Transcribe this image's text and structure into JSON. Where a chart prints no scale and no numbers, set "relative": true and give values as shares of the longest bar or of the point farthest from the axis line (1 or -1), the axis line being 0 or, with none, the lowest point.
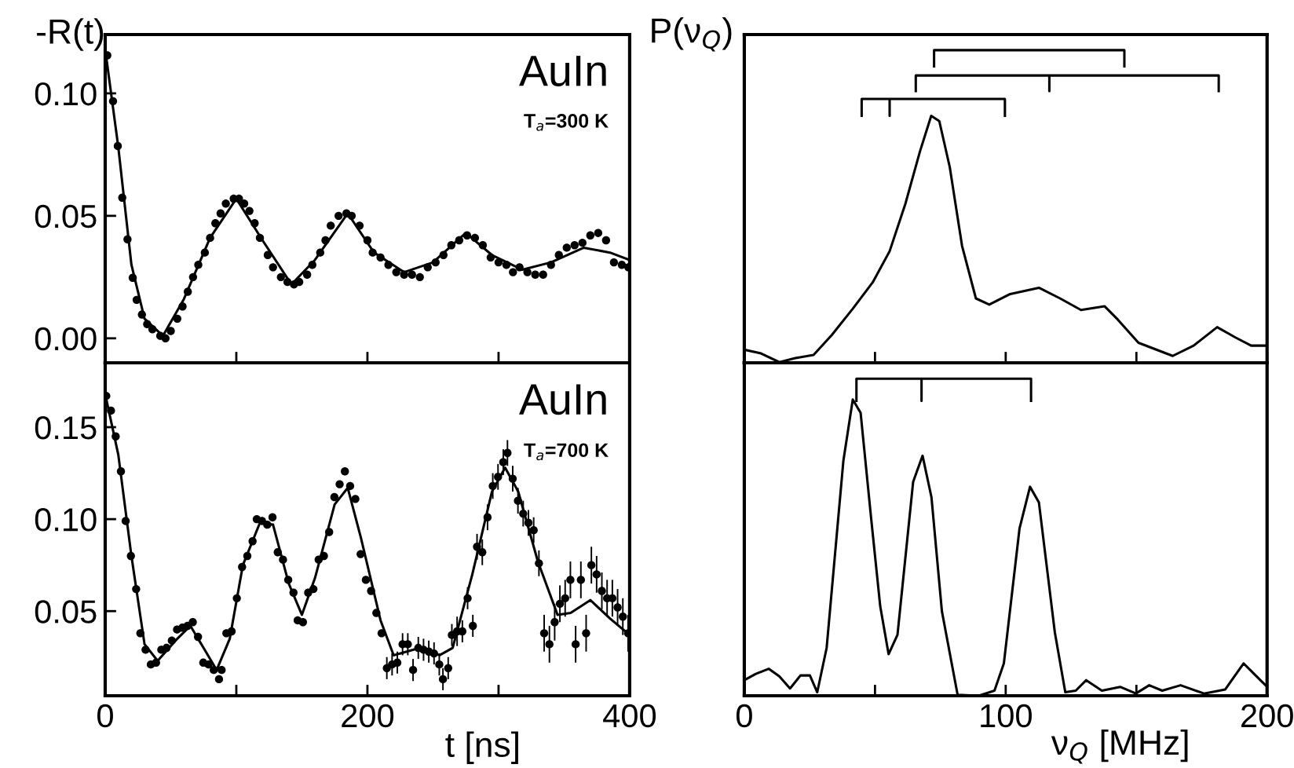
{
  "chart_data": [
    {
      "type": "scatter",
      "ylabel": "-R(t)",
      "annotations": [
        "AuIn",
        "T$_{a}$=300 K"
      ],
      "xlim": [
        0,
        400
      ],
      "xticks": [
        0,
        {
          "value": 100,
          "label": null
        },
        200,
        {
          "value": 300,
          "label": null
        },
        400
      ],
      "ylim": [
        -0.01,
        0.124
      ],
      "yticks": [
        {
          "value": 0,
          "label": "0.00"
        },
        {
          "value": 0.05,
          "label": "0.05"
        },
        {
          "value": 0.1,
          "label": "0.10"
        }
      ],
      "tick_labels": "y",
      "series": [
        {
          "marker": "circle",
          "color": "#000000",
          "x": [
            1.6,
            6,
            9.6,
            13,
            17,
            21,
            24,
            28,
            32,
            36,
            42,
            46,
            50,
            55,
            59,
            63,
            67,
            71,
            76,
            80,
            84,
            88,
            92,
            98,
            102,
            106,
            110,
            114,
            118,
            124,
            128,
            134,
            139,
            144,
            148,
            154,
            158,
            164,
            168,
            172,
            178,
            184,
            188,
            194,
            200,
            204,
            210,
            216,
            222,
            228,
            234,
            240,
            246,
            252,
            258,
            264,
            270,
            276,
            282,
            288,
            294,
            300,
            306,
            311,
            316,
            322,
            328,
            334,
            340,
            346,
            352,
            358,
            364,
            370,
            376,
            382,
            388,
            394,
            399
          ],
          "values": [
            0.1155,
            0.0968,
            0.0785,
            0.0574,
            0.0404,
            0.0247,
            0.0157,
            0.0097,
            0.0058,
            0.0037,
            0.001,
            0.0,
            0.003,
            0.008,
            0.013,
            0.019,
            0.025,
            0.03,
            0.035,
            0.041,
            0.047,
            0.051,
            0.055,
            0.057,
            0.057,
            0.055,
            0.052,
            0.047,
            0.041,
            0.034,
            0.029,
            0.025,
            0.023,
            0.022,
            0.023,
            0.026,
            0.03,
            0.035,
            0.04,
            0.046,
            0.05,
            0.051,
            0.05,
            0.046,
            0.04,
            0.035,
            0.033,
            0.03,
            0.027,
            0.026,
            0.026,
            0.025,
            0.029,
            0.031,
            0.034,
            0.038,
            0.04,
            0.042,
            0.041,
            0.038,
            0.033,
            0.031,
            0.03,
            0.027,
            0.029,
            0.027,
            0.026,
            0.026,
            0.03,
            0.034,
            0.037,
            0.038,
            0.039,
            0.042,
            0.043,
            0.04,
            0.031,
            0.03,
            0.029
          ]
        },
        {
          "type": "line",
          "color": "#000000",
          "x": [
            0,
            10,
            20,
            30,
            44,
            60,
            80,
            100,
            120,
            142,
            160,
            185,
            205,
            228,
            250,
            275,
            295,
            318,
            340,
            365,
            385,
            400
          ],
          "values": [
            0.118,
            0.078,
            0.03,
            0.008,
            0.001,
            0.016,
            0.041,
            0.057,
            0.04,
            0.022,
            0.032,
            0.051,
            0.035,
            0.027,
            0.031,
            0.043,
            0.034,
            0.028,
            0.031,
            0.037,
            0.035,
            0.032
          ]
        }
      ]
    },
    {
      "type": "line",
      "ylabel": "P(ν$_{Q}$)",
      "relative": true,
      "xlim": [
        0,
        200
      ],
      "xticks": [
        0,
        {
          "value": 50,
          "label": null
        },
        100,
        {
          "value": 150,
          "label": null
        },
        200
      ],
      "tick_labels": false,
      "series": [
        {
          "color": "#000000",
          "x": [
            0,
            6.4,
            13.4,
            19.5,
            26.5,
            33.5,
            41.5,
            49.1,
            55.6,
            61.6,
            67.2,
            71.5,
            74.6,
            78.6,
            83.3,
            88.6,
            93.7,
            101.7,
            112.7,
            120.8,
            128.8,
            137.8,
            142.8,
            150.8,
            163.9,
            171.9,
            180.9,
            187.9,
            193.9,
            200
          ],
          "values": [
            0.042,
            0.03,
            0.002,
            0.015,
            0.025,
            0.089,
            0.173,
            0.257,
            0.357,
            0.508,
            0.676,
            0.79,
            0.773,
            0.626,
            0.374,
            0.206,
            0.186,
            0.22,
            0.24,
            0.206,
            0.169,
            0.181,
            0.139,
            0.064,
            0.022,
            0.055,
            0.114,
            0.081,
            0.055,
            0.055
          ]
        },
        {
          "color": "#000000",
          "x": [
            72.6,
            72.6,
            145.4,
            145.4
          ],
          "values": [
            0.948,
            1.0,
            1.0,
            0.948
          ]
        },
        {
          "color": "#000000",
          "x": [
            65.6,
            65.6,
            116.7,
            116.7,
            116.7,
            181.5,
            181.5
          ],
          "values": [
            0.869,
            0.919,
            0.919,
            0.869,
            0.919,
            0.919,
            0.869
          ]
        },
        {
          "color": "#000000",
          "x": [
            44.9,
            44.9,
            55.6,
            55.6,
            55.6,
            99.7,
            99.7
          ],
          "values": [
            0.79,
            0.844,
            0.844,
            0.79,
            0.844,
            0.844,
            0.79
          ]
        }
      ]
    },
    {
      "type": "scatter",
      "xlabel": "t [ns]",
      "annotations": [
        "AuIn",
        "T$_{a}$=700 K"
      ],
      "xlim": [
        0,
        400
      ],
      "xticks": [
        0,
        {
          "value": 100,
          "label": null
        },
        200,
        {
          "value": 300,
          "label": null
        },
        400
      ],
      "ylim": [
        0.004,
        0.185
      ],
      "yticks": [
        {
          "value": 0.05,
          "label": "0.05"
        },
        {
          "value": 0.1,
          "label": "0.10"
        },
        {
          "value": 0.15,
          "label": "0.15"
        }
      ],
      "series": [
        {
          "marker": "circle",
          "color": "#000000",
          "x": [
            0.8,
            4.4,
            8,
            12,
            15.6,
            19.6,
            23.6,
            26.8,
            30.8,
            34.8,
            38.8,
            42.8,
            46.8,
            50.8,
            54.8,
            58.8,
            62.8,
            66.8,
            70.8,
            74.8,
            78.8,
            82.8,
            86.8,
            88.8,
            92.4,
            96.4,
            100.4,
            104.4,
            108.4,
            112.4,
            115.6,
            119.6,
            123.6,
            127.6,
            131.6,
            135.6,
            139.6,
            143.6,
            146.8,
            150.8,
            154.8,
            158.8,
            162.8,
            166.8,
            170.8,
            174.8,
            178.8,
            182.8,
            186.8,
            190.8,
            194.8,
            198.8,
            202.8,
            206.8,
            210.8,
            214.8,
            218.8,
            222.8,
            226.8,
            230.8,
            234.8,
            238.8,
            242.8,
            246.8,
            250.8,
            254.8,
            257.6,
            261.6,
            264.4,
            268.4,
            272.4,
            276.4,
            280.4,
            283.6,
            287.6,
            291.6,
            295.6,
            299.6,
            303.6,
            306.8,
            310.8,
            314.8,
            318.8,
            322.8,
            326.8,
            330.8,
            334.8,
            338.8,
            342.8,
            346.8,
            350.8,
            354.8,
            358.8,
            362.8,
            366.8,
            370.8,
            374.8,
            378.8,
            382.8,
            386.8,
            390.8,
            394.8,
            398.8
          ],
          "values": [
            0.167,
            0.159,
            0.145,
            0.126,
            0.099,
            0.08,
            0.062,
            0.038,
            0.029,
            0.021,
            0.022,
            0.029,
            0.03,
            0.034,
            0.04,
            0.041,
            0.042,
            0.044,
            0.036,
            0.022,
            0.021,
            0.018,
            0.013,
            0.018,
            0.038,
            0.039,
            0.057,
            0.074,
            0.08,
            0.088,
            0.1,
            0.099,
            0.097,
            0.101,
            0.082,
            0.078,
            0.067,
            0.06,
            0.045,
            0.044,
            0.06,
            0.062,
            0.078,
            0.08,
            0.093,
            0.112,
            0.119,
            0.126,
            0.118,
            0.111,
            0.081,
            0.067,
            0.061,
            0.049,
            0.038,
            0.019,
            0.021,
            0.022,
            0.032,
            0.032,
            0.018,
            0.03,
            0.029,
            0.028,
            0.027,
            0.021,
            0.013,
            0.019,
            0.037,
            0.039,
            0.039,
            0.057,
            0.042,
            0.085,
            0.082,
            0.101,
            0.118,
            0.123,
            0.131,
            0.136,
            0.122,
            0.11,
            0.103,
            0.098,
            0.094,
            0.076,
            0.038,
            0.032,
            0.044,
            0.054,
            0.057,
            0.067,
            0.032,
            0.067,
            0.038,
            0.075,
            0.07,
            0.061,
            0.057,
            0.057,
            0.052,
            0.047,
            0.038
          ],
          "errors": [
            null,
            null,
            null,
            null,
            null,
            null,
            null,
            null,
            null,
            null,
            null,
            null,
            null,
            null,
            null,
            null,
            null,
            null,
            null,
            null,
            null,
            null,
            null,
            null,
            null,
            null,
            null,
            null,
            null,
            null,
            null,
            null,
            null,
            null,
            null,
            null,
            null,
            null,
            null,
            null,
            null,
            null,
            null,
            null,
            null,
            null,
            null,
            null,
            null,
            null,
            null,
            null,
            null,
            null,
            null,
            0.006,
            0.006,
            0.006,
            0.006,
            0.006,
            0.006,
            0.006,
            0.006,
            0.006,
            0.006,
            0.006,
            0.006,
            0.006,
            0.006,
            0.008,
            0.006,
            0.006,
            0.006,
            0.007,
            0.007,
            0.007,
            0.007,
            0.007,
            0.007,
            0.007,
            0.007,
            0.007,
            0.007,
            0.007,
            0.007,
            0.007,
            0.01,
            0.01,
            0.01,
            0.01,
            0.01,
            0.01,
            0.01,
            0.01,
            0.01,
            0.01,
            0.01,
            0.01,
            0.01,
            0.01,
            0.01,
            0.01,
            0.01
          ]
        },
        {
          "type": "line",
          "color": "#000000",
          "x": [
            0,
            10,
            20,
            30,
            40,
            55,
            65,
            75,
            85,
            95,
            105,
            118,
            128,
            140,
            150,
            160,
            175,
            185,
            195,
            210,
            220,
            240,
            255,
            265,
            280,
            295,
            305,
            315,
            330,
            345,
            355,
            370,
            385,
            400
          ],
          "values": [
            0.168,
            0.135,
            0.08,
            0.032,
            0.023,
            0.035,
            0.042,
            0.03,
            0.018,
            0.035,
            0.075,
            0.098,
            0.097,
            0.065,
            0.048,
            0.068,
            0.108,
            0.117,
            0.09,
            0.045,
            0.026,
            0.03,
            0.026,
            0.03,
            0.07,
            0.115,
            0.128,
            0.115,
            0.077,
            0.048,
            0.049,
            0.056,
            0.046,
            0.037
          ]
        }
      ]
    },
    {
      "type": "line",
      "xlabel": "ν$_{Q}$ [MHz]",
      "relative": true,
      "xlim": [
        0,
        200
      ],
      "xticks": [
        0,
        {
          "value": 50,
          "label": null
        },
        100,
        {
          "value": 150,
          "label": null
        },
        200
      ],
      "tick_labels": "x",
      "series": [
        {
          "color": "#000000",
          "x": [
            0,
            4.4,
            9.4,
            13.4,
            17.5,
            21.5,
            25.1,
            27.9,
            31.5,
            37.9,
            41.5,
            44.5,
            48.5,
            52,
            55.2,
            58.6,
            64.6,
            68.2,
            71.6,
            75.6,
            81.6,
            89.7,
            95.7,
            99.3,
            105.3,
            109.3,
            112.7,
            118.8,
            122.8,
            126.8,
            130.8,
            136.8,
            143.8,
            149.8,
            154.9,
            159.9,
            166.9,
            175.9,
            184,
            191,
            196,
            200
          ],
          "values": [
            0.049,
            0.069,
            0.085,
            0.061,
            0.023,
            0.064,
            0.064,
            0.011,
            0.151,
            0.741,
            0.934,
            0.892,
            0.561,
            0.282,
            0.131,
            0.192,
            0.675,
            0.757,
            0.626,
            0.266,
            0.003,
            0,
            0.016,
            0.102,
            0.528,
            0.659,
            0.61,
            0.2,
            0.011,
            0.016,
            0.049,
            0.016,
            0.028,
            0.007,
            0.033,
            0.016,
            0.033,
            0.007,
            0.02,
            0.102,
            0.061,
            0.028
          ]
        },
        {
          "color": "#000000",
          "x": [
            42.9,
            42.9,
            67.8,
            67.8,
            67.8,
            109.7,
            109.7
          ],
          "values": [
            0.93,
            1.0,
            1.0,
            0.93,
            1.0,
            1.0,
            0.93
          ]
        }
      ]
    }
  ]
}
